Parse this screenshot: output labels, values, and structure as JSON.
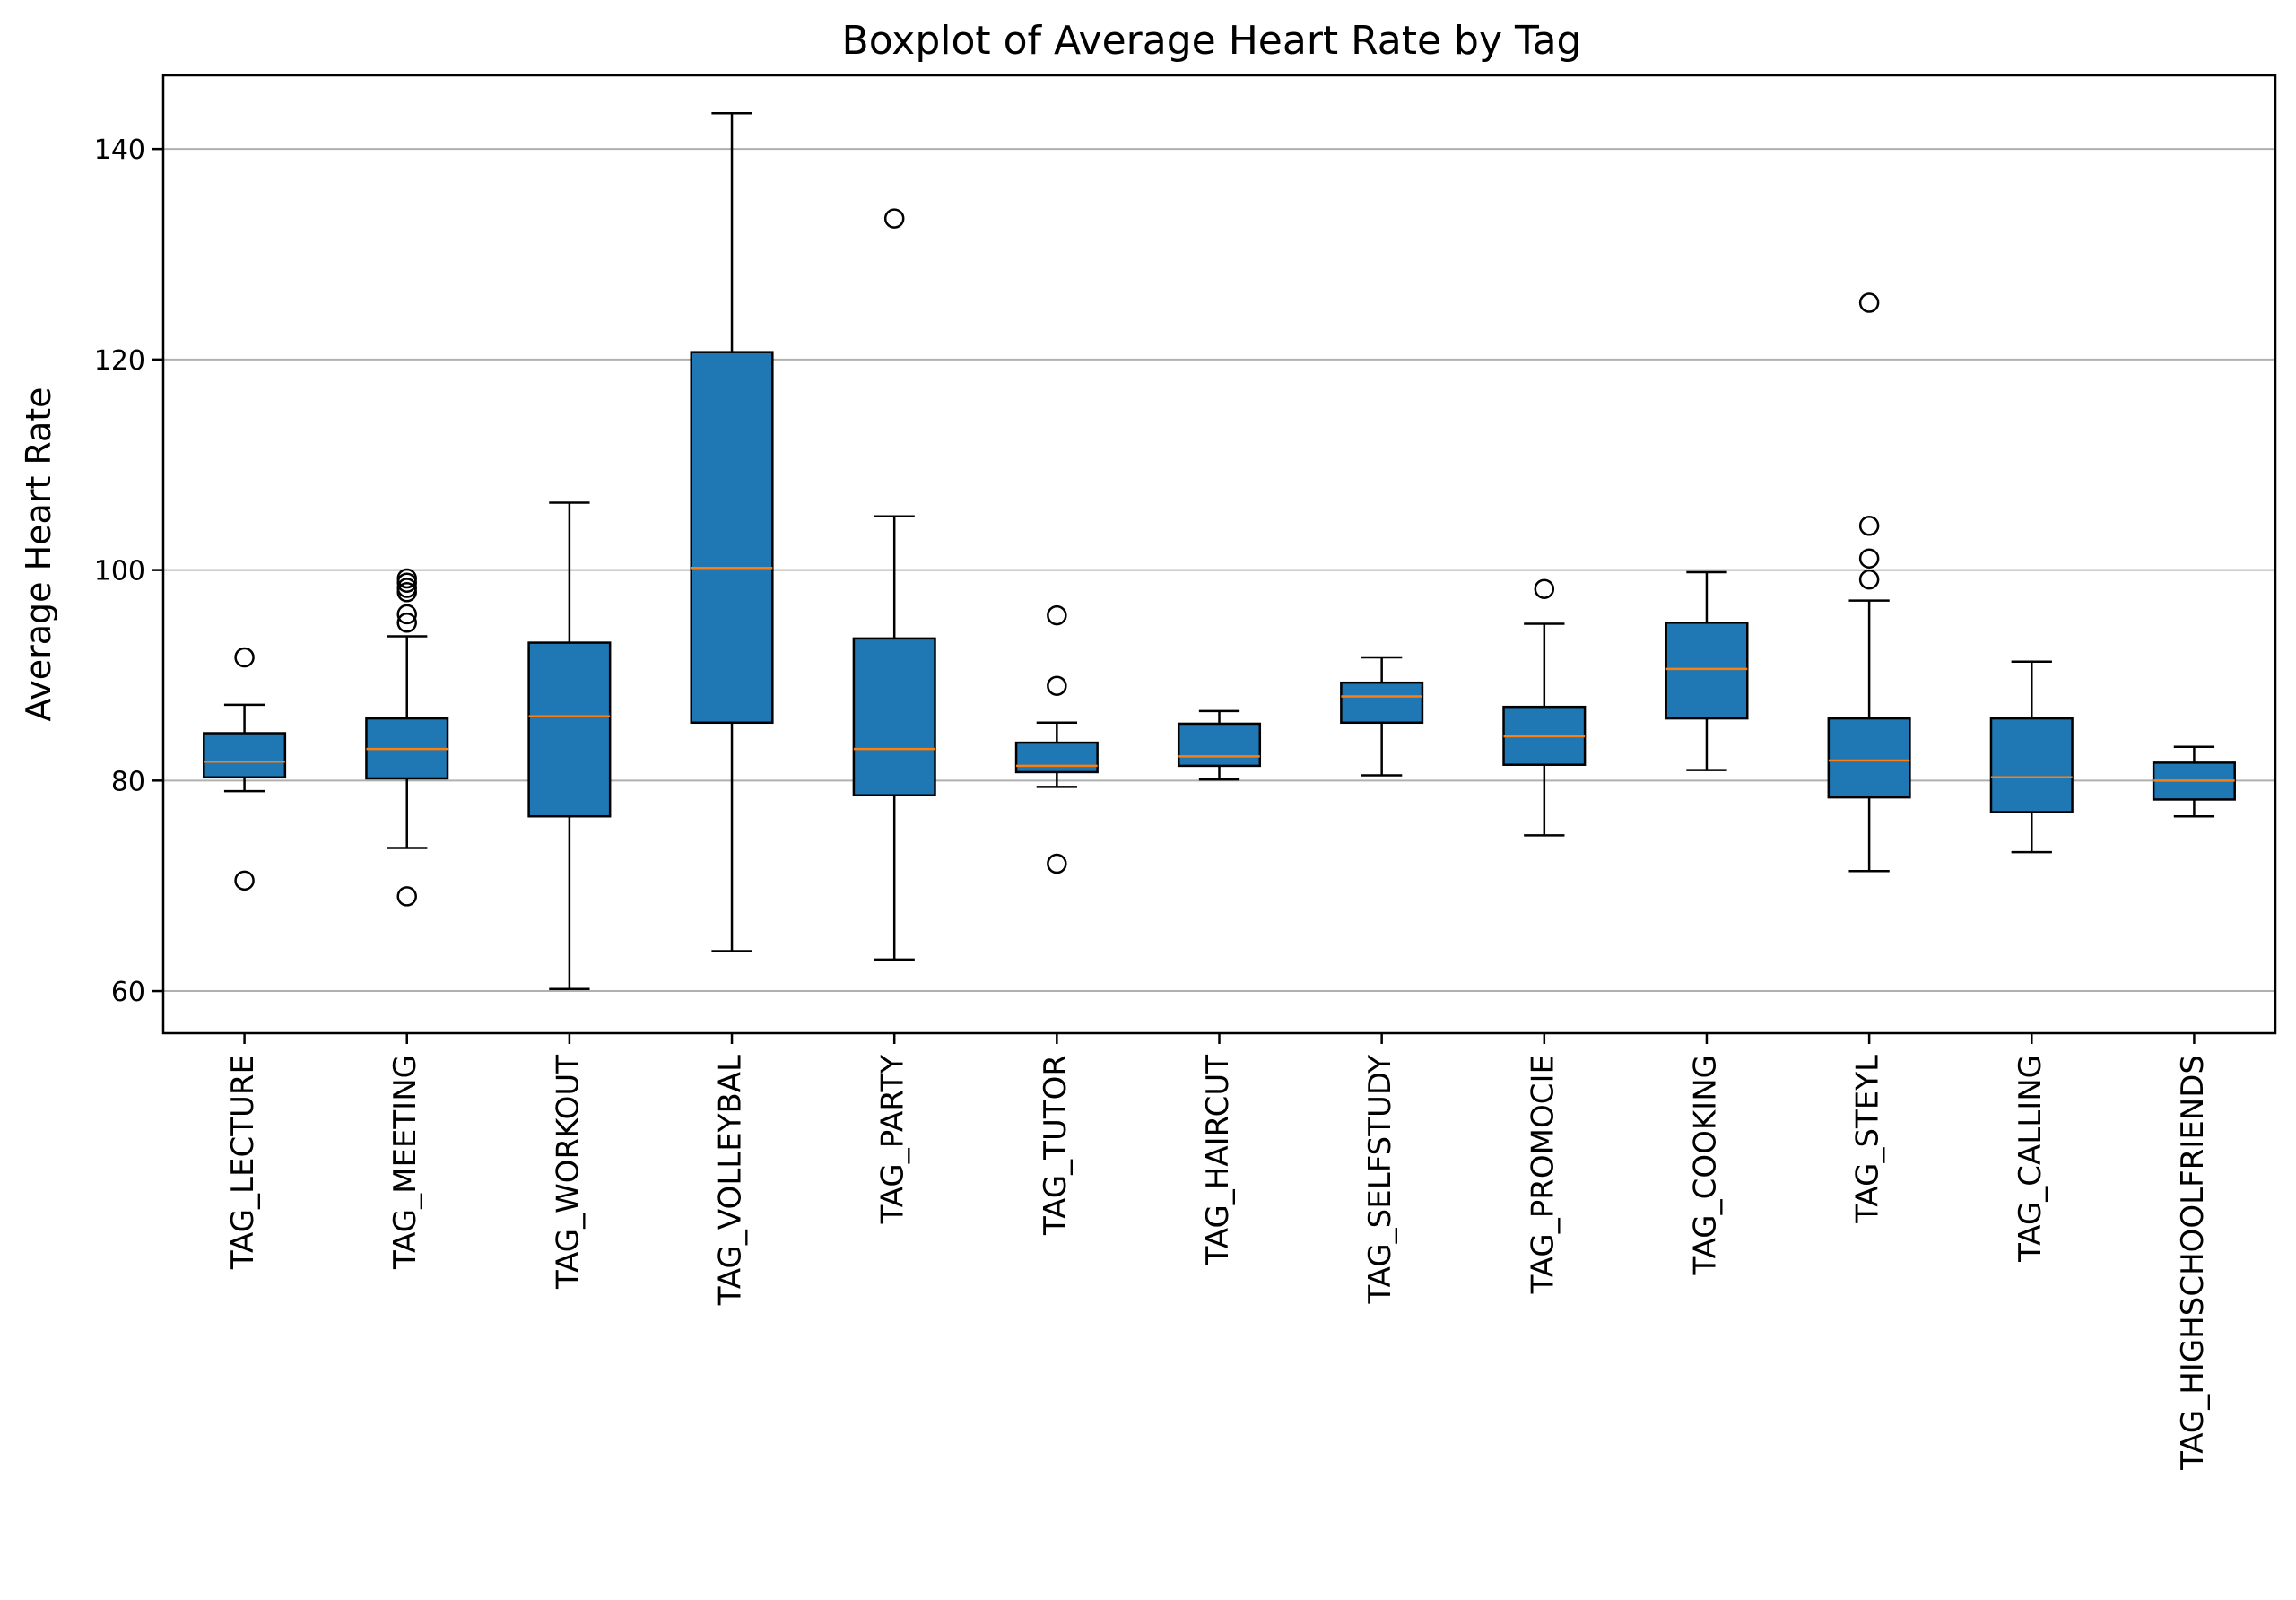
{
  "chart_data": {
    "type": "boxplot",
    "title": "Boxplot of Average Heart Rate by Tag",
    "xlabel": "",
    "ylabel": "Average Heart Rate",
    "ylim": [
      56,
      147
    ],
    "yticks": [
      60,
      80,
      100,
      120,
      140
    ],
    "grid": "horizontal",
    "colors": {
      "box": "#1f77b4",
      "median": "#ff7f0e",
      "edge": "#000000",
      "grid": "#b0b0b0"
    },
    "categories": [
      "TAG_LECTURE",
      "TAG_MEETING",
      "TAG_WORKOUT",
      "TAG_VOLLEYBAL",
      "TAG_PARTY",
      "TAG_TUTOR",
      "TAG_HAIRCUT",
      "TAG_SELFSTUDY",
      "TAG_PROMOCIE",
      "TAG_COOKING",
      "TAG_STEYL",
      "TAG_CALLING",
      "TAG_HIGHSCHOOLFRIENDS"
    ],
    "boxes": [
      {
        "whislo": 79.0,
        "q1": 80.3,
        "med": 81.8,
        "q3": 84.5,
        "whishi": 87.2,
        "fliers": [
          91.7,
          70.5
        ]
      },
      {
        "whislo": 73.6,
        "q1": 80.2,
        "med": 83.0,
        "q3": 85.9,
        "whishi": 93.7,
        "fliers": [
          99.2,
          98.8,
          98.3,
          97.9,
          95.8,
          95.0,
          69.0
        ]
      },
      {
        "whislo": 60.2,
        "q1": 76.6,
        "med": 86.1,
        "q3": 93.1,
        "whishi": 106.4,
        "fliers": []
      },
      {
        "whislo": 63.8,
        "q1": 85.5,
        "med": 100.2,
        "q3": 120.7,
        "whishi": 143.4,
        "fliers": []
      },
      {
        "whislo": 63.0,
        "q1": 78.6,
        "med": 83.0,
        "q3": 93.5,
        "whishi": 105.1,
        "fliers": [
          133.4
        ]
      },
      {
        "whislo": 79.4,
        "q1": 80.8,
        "med": 81.4,
        "q3": 83.6,
        "whishi": 85.5,
        "fliers": [
          95.7,
          89.0,
          72.1
        ]
      },
      {
        "whislo": 80.1,
        "q1": 81.4,
        "med": 82.3,
        "q3": 85.4,
        "whishi": 86.6,
        "fliers": []
      },
      {
        "whislo": 80.5,
        "q1": 85.5,
        "med": 88.0,
        "q3": 89.3,
        "whishi": 91.7,
        "fliers": []
      },
      {
        "whislo": 74.8,
        "q1": 81.5,
        "med": 84.2,
        "q3": 87.0,
        "whishi": 94.9,
        "fliers": [
          98.2
        ]
      },
      {
        "whislo": 81.0,
        "q1": 85.9,
        "med": 90.6,
        "q3": 95.0,
        "whishi": 99.8,
        "fliers": []
      },
      {
        "whislo": 71.4,
        "q1": 78.4,
        "med": 81.9,
        "q3": 85.9,
        "whishi": 97.1,
        "fliers": [
          125.4,
          104.2,
          101.1,
          99.1
        ]
      },
      {
        "whislo": 73.2,
        "q1": 77.0,
        "med": 80.3,
        "q3": 85.9,
        "whishi": 91.3,
        "fliers": []
      },
      {
        "whislo": 76.6,
        "q1": 78.2,
        "med": 80.0,
        "q3": 81.7,
        "whishi": 83.2,
        "fliers": []
      }
    ]
  }
}
